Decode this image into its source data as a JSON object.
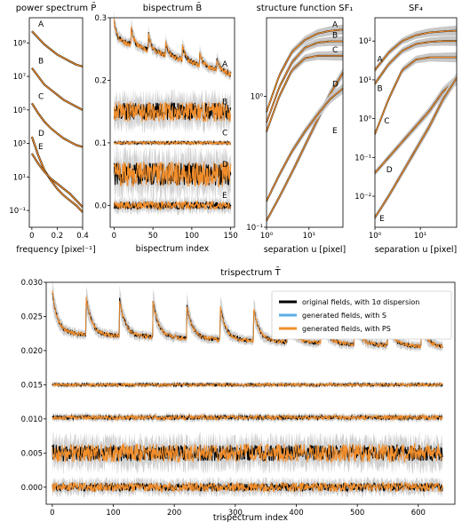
{
  "chart_data": [
    {
      "type": "line",
      "title": "power spectrum P̄",
      "xlabel": "frequency [pixel⁻¹]",
      "ylabel": "",
      "xlim": [
        -0.02,
        0.4
      ],
      "ylim_log10": [
        -2,
        10.5
      ],
      "y_scale": "log",
      "xticks": [
        0,
        0.2,
        0.4
      ],
      "xtick_labels": [
        "0",
        "0.2",
        "0.4"
      ],
      "yticks_log10": [
        -1,
        1,
        3,
        5,
        7,
        9
      ],
      "ytick_labels": [
        "10⁻¹",
        "10¹",
        "10³",
        "10⁵",
        "10⁷",
        "10⁹"
      ],
      "curve_labels": [
        "A",
        "B",
        "C",
        "D",
        "E"
      ],
      "colors": {
        "original": "#000000",
        "S": "#5aaee6",
        "PS": "#f28e2b",
        "band": "#c8c8c8"
      },
      "series": [
        {
          "label": "A",
          "x": [
            0,
            0.05,
            0.1,
            0.15,
            0.2,
            0.25,
            0.3,
            0.35,
            0.4
          ],
          "log10_y": [
            9.7,
            9.3,
            8.9,
            8.6,
            8.3,
            8.1,
            7.9,
            7.7,
            7.6
          ]
        },
        {
          "label": "B",
          "x": [
            0,
            0.05,
            0.1,
            0.15,
            0.2,
            0.25,
            0.3,
            0.35,
            0.4
          ],
          "log10_y": [
            7.5,
            7.0,
            6.5,
            6.2,
            5.9,
            5.6,
            5.4,
            5.2,
            5.0
          ]
        },
        {
          "label": "C",
          "x": [
            0,
            0.05,
            0.1,
            0.15,
            0.2,
            0.25,
            0.3,
            0.35,
            0.4
          ],
          "log10_y": [
            5.4,
            4.8,
            4.3,
            3.9,
            3.6,
            3.3,
            3.1,
            2.9,
            2.8
          ]
        },
        {
          "label": "D",
          "x": [
            0,
            0.05,
            0.1,
            0.15,
            0.2,
            0.25,
            0.3,
            0.35,
            0.4
          ],
          "log10_y": [
            3.4,
            2.3,
            1.4,
            0.8,
            0.3,
            -0.1,
            -0.4,
            -0.7,
            -1.1
          ]
        },
        {
          "label": "E",
          "x": [
            0,
            0.05,
            0.1,
            0.15,
            0.2,
            0.25,
            0.3,
            0.35,
            0.4
          ],
          "log10_y": [
            2.4,
            1.8,
            1.3,
            0.9,
            0.6,
            0.3,
            0.0,
            -0.4,
            -0.8
          ]
        }
      ]
    },
    {
      "type": "line",
      "title": "bispectrum B̄",
      "xlabel": "bispectrum index",
      "ylabel": "",
      "xlim": [
        -5,
        155
      ],
      "ylim": [
        -0.035,
        0.3
      ],
      "xticks": [
        0,
        50,
        100,
        150
      ],
      "yticks": [
        0.0,
        0.1,
        0.2,
        0.3
      ],
      "ytick_labels": [
        "0.0",
        "0.1",
        "0.2",
        "0.3"
      ],
      "curve_labels": [
        "A",
        "B",
        "C",
        "D",
        "E"
      ],
      "series": [
        {
          "label": "A",
          "base": [
            0.265,
            0.21
          ],
          "spikes": 0.03,
          "noise": 0.004
        },
        {
          "label": "B",
          "base": [
            0.15,
            0.15
          ],
          "spikes": 0.0,
          "noise": 0.014
        },
        {
          "label": "C",
          "base": [
            0.1,
            0.1
          ],
          "spikes": 0.0,
          "noise": 0.002
        },
        {
          "label": "D",
          "base": [
            0.05,
            0.05
          ],
          "spikes": 0.0,
          "noise": 0.018
        },
        {
          "label": "E",
          "base": [
            0.0,
            0.0
          ],
          "spikes": 0.0,
          "noise": 0.006
        }
      ]
    },
    {
      "type": "line",
      "title": "structure function SF₁",
      "xlabel": "separation u [pixel]",
      "ylabel": "",
      "x_scale": "log",
      "y_scale": "log",
      "xlim_log10": [
        0,
        1.8
      ],
      "ylim_log10": [
        -1,
        0.6
      ],
      "xticks_log10": [
        0,
        1
      ],
      "xtick_labels": [
        "10⁰",
        "10¹"
      ],
      "yticks_log10": [
        -1,
        0
      ],
      "ytick_labels": [
        "10⁻¹",
        "10⁰"
      ],
      "curve_labels": [
        "A",
        "B",
        "C",
        "D",
        "E"
      ],
      "series": [
        {
          "label": "A",
          "log10_x": [
            0,
            0.3,
            0.6,
            0.9,
            1.2,
            1.5,
            1.8
          ],
          "log10_y": [
            -0.12,
            0.16,
            0.34,
            0.43,
            0.48,
            0.5,
            0.51
          ]
        },
        {
          "label": "B",
          "log10_x": [
            0,
            0.3,
            0.6,
            0.9,
            1.2,
            1.5,
            1.8
          ],
          "log10_y": [
            -0.2,
            0.07,
            0.26,
            0.37,
            0.41,
            0.42,
            0.42
          ]
        },
        {
          "label": "C",
          "log10_x": [
            0,
            0.3,
            0.6,
            0.9,
            1.2,
            1.5,
            1.8
          ],
          "log10_y": [
            -0.27,
            0.0,
            0.2,
            0.29,
            0.31,
            0.31,
            0.31
          ]
        },
        {
          "label": "D",
          "log10_x": [
            0,
            0.3,
            0.6,
            0.9,
            1.2,
            1.5,
            1.8
          ],
          "log10_y": [
            -0.95,
            -0.77,
            -0.58,
            -0.38,
            -0.18,
            0.02,
            0.18
          ]
        },
        {
          "label": "E",
          "log10_x": [
            0,
            0.3,
            0.6,
            0.9,
            1.2,
            1.5,
            1.8
          ],
          "log10_y": [
            -0.8,
            -0.6,
            -0.42,
            -0.27,
            -0.14,
            -0.02,
            0.06
          ]
        }
      ]
    },
    {
      "type": "line",
      "title": "SF₄",
      "xlabel": "separation u [pixel]",
      "ylabel": "",
      "x_scale": "log",
      "y_scale": "log",
      "xlim_log10": [
        0,
        1.8
      ],
      "ylim_log10": [
        -2.8,
        2.6
      ],
      "xticks_log10": [
        0,
        1
      ],
      "xtick_labels": [
        "10⁰",
        "10¹"
      ],
      "yticks_log10": [
        -2,
        -1,
        0,
        1,
        2
      ],
      "ytick_labels": [
        "10⁻²",
        "10⁻¹",
        "10⁰",
        "10¹",
        "10²"
      ],
      "curve_labels": [
        "A",
        "B",
        "C",
        "D",
        "E"
      ],
      "series": [
        {
          "label": "A",
          "log10_x": [
            0,
            0.3,
            0.6,
            0.9,
            1.2,
            1.5,
            1.8
          ],
          "log10_y": [
            1.25,
            1.7,
            2.0,
            2.15,
            2.22,
            2.25,
            2.27
          ]
        },
        {
          "label": "B",
          "log10_x": [
            0,
            0.3,
            0.6,
            0.9,
            1.2,
            1.5,
            1.8
          ],
          "log10_y": [
            0.9,
            1.4,
            1.75,
            1.92,
            1.98,
            2.0,
            2.0
          ]
        },
        {
          "label": "C",
          "log10_x": [
            0,
            0.3,
            0.6,
            0.9,
            1.2,
            1.5,
            1.8
          ],
          "log10_y": [
            -0.4,
            0.5,
            1.25,
            1.52,
            1.58,
            1.58,
            1.58
          ]
        },
        {
          "label": "D",
          "log10_x": [
            0,
            0.3,
            0.6,
            0.9,
            1.2,
            1.5,
            1.8
          ],
          "log10_y": [
            -1.4,
            -1.0,
            -0.6,
            -0.2,
            0.2,
            0.7,
            1.0
          ]
        },
        {
          "label": "E",
          "log10_x": [
            0,
            0.3,
            0.6,
            0.9,
            1.2,
            1.5,
            1.8
          ],
          "log10_y": [
            -2.55,
            -2.0,
            -1.4,
            -0.8,
            -0.2,
            0.5,
            1.05
          ]
        }
      ]
    },
    {
      "type": "line",
      "title": "trispectrum T̄",
      "xlabel": "trispectrum index",
      "ylabel": "",
      "xlim": [
        -10,
        660
      ],
      "ylim": [
        -0.0025,
        0.03
      ],
      "xticks": [
        0,
        100,
        200,
        300,
        400,
        500,
        600
      ],
      "yticks": [
        0.0,
        0.005,
        0.01,
        0.015,
        0.02,
        0.025,
        0.03
      ],
      "ytick_labels": [
        "0.000",
        "0.005",
        "0.010",
        "0.015",
        "0.020",
        "0.025",
        "0.030"
      ],
      "legend_position": "top-right",
      "legend": [
        {
          "key": "original",
          "label": "original fields, with 1σ dispersion",
          "color": "#000000"
        },
        {
          "key": "S",
          "label": "generated fields, with S",
          "color": "#5aaee6"
        },
        {
          "key": "PS",
          "label": "generated fields, with PS",
          "color": "#f28e2b"
        }
      ],
      "series": [
        {
          "label": "A",
          "base": [
            0.0225,
            0.0205
          ],
          "spikes": 0.006,
          "noise": 0.0003
        },
        {
          "label": "B",
          "base": [
            0.015,
            0.015
          ],
          "spikes": 0.0,
          "noise": 0.0002
        },
        {
          "label": "C",
          "base": [
            0.0102,
            0.0102
          ],
          "spikes": 0.0,
          "noise": 0.0003
        },
        {
          "label": "D",
          "base": [
            0.005,
            0.005
          ],
          "spikes": 0.0,
          "noise": 0.0012
        },
        {
          "label": "E",
          "base": [
            0.0,
            0.0
          ],
          "spikes": 0.0,
          "noise": 0.0006
        }
      ]
    }
  ]
}
